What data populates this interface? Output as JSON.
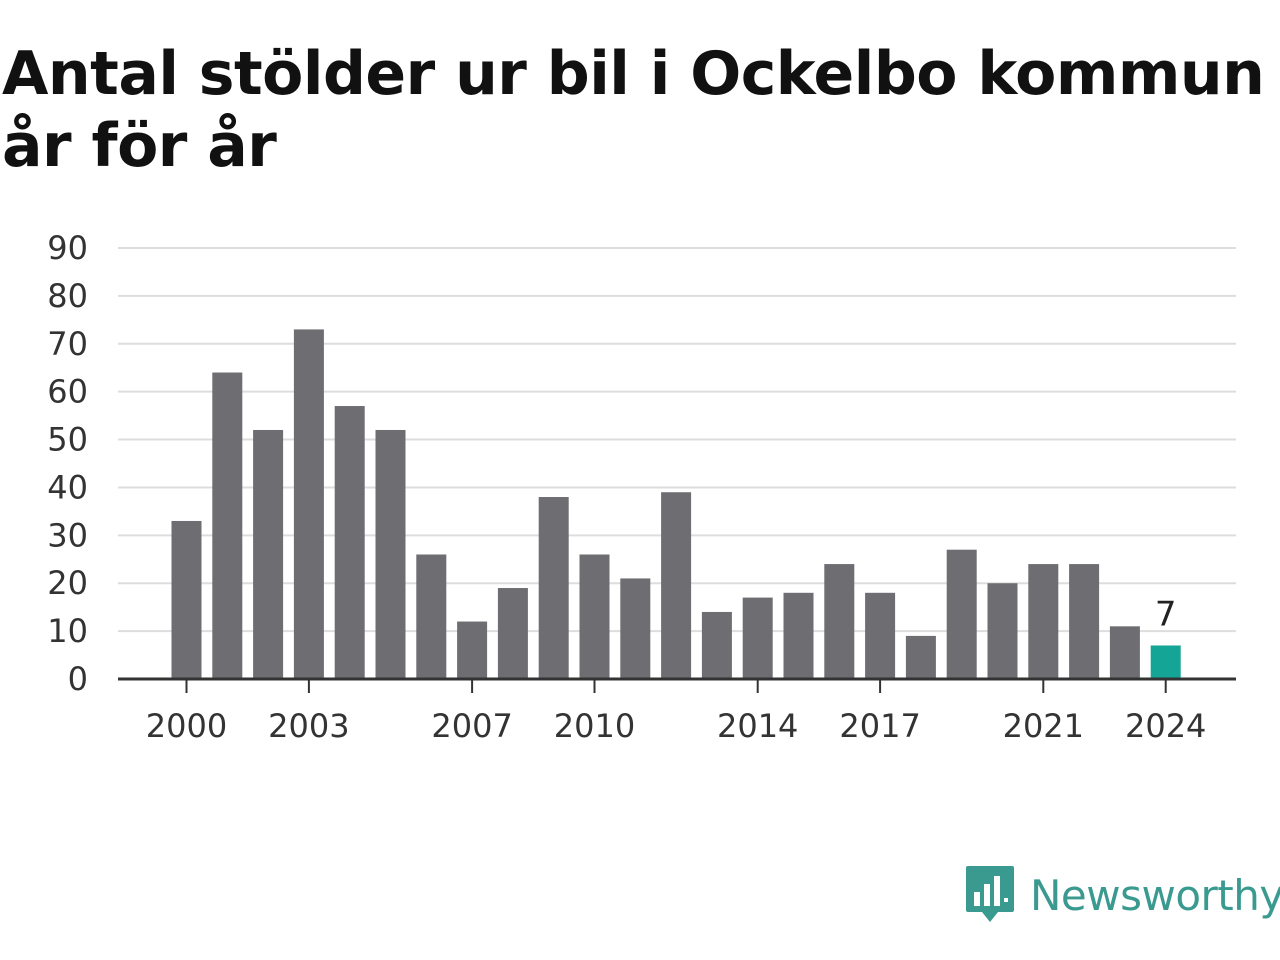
{
  "title": "Antal stölder ur bil i Ockelbo kommun år för år",
  "brand": {
    "name": "Newsworthy",
    "color": "#3a9a90",
    "icon": "bar-chart-speech-bubble-icon"
  },
  "colors": {
    "bar": "#6e6d72",
    "highlight": "#14a596",
    "grid": "#dddddd",
    "axis": "#333333"
  },
  "chart_data": {
    "type": "bar",
    "title": "Antal stölder ur bil i Ockelbo kommun år för år",
    "xlabel": "",
    "ylabel": "",
    "categories": [
      2000,
      2001,
      2002,
      2003,
      2004,
      2005,
      2006,
      2007,
      2008,
      2009,
      2010,
      2011,
      2012,
      2013,
      2014,
      2015,
      2016,
      2017,
      2018,
      2019,
      2020,
      2021,
      2022,
      2023,
      2024
    ],
    "values": [
      33,
      64,
      52,
      73,
      57,
      52,
      26,
      12,
      19,
      38,
      26,
      21,
      39,
      14,
      17,
      18,
      24,
      18,
      9,
      27,
      20,
      24,
      24,
      11,
      7
    ],
    "x_tick_labels": [
      "2000",
      "2003",
      "2007",
      "2010",
      "2014",
      "2017",
      "2021",
      "2024"
    ],
    "y_ticks": [
      0,
      10,
      20,
      30,
      40,
      50,
      60,
      70,
      80,
      90
    ],
    "ylim": [
      0,
      90
    ],
    "grid": true,
    "highlight": {
      "category": 2024,
      "label": "7"
    }
  }
}
